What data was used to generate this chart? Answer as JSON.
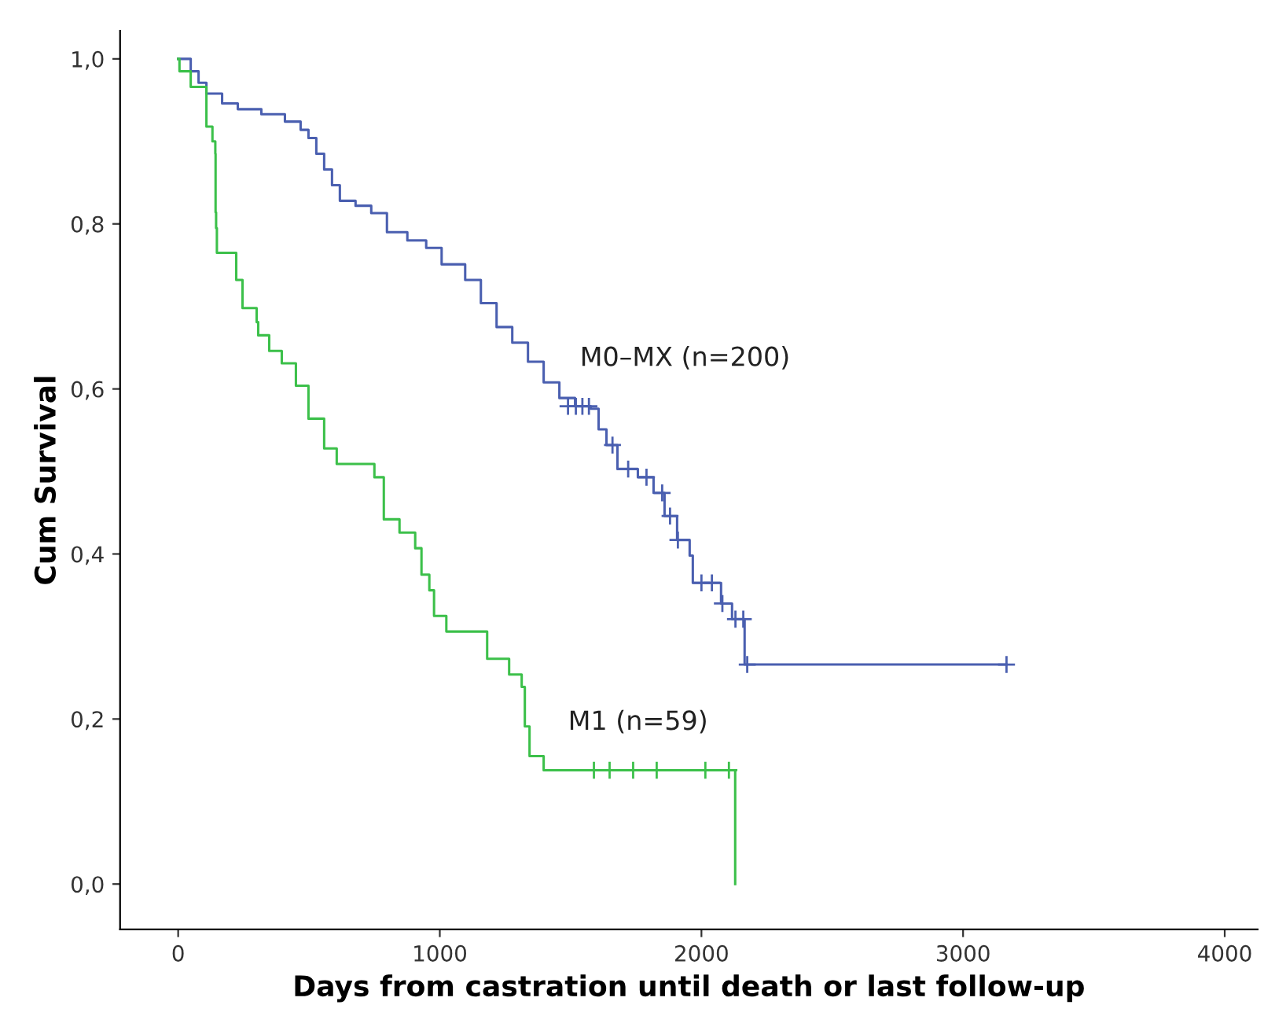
{
  "chart_data": {
    "type": "step",
    "xlabel": "Days from castration until death or last follow-up",
    "ylabel": "Cum Survival",
    "xlim": [
      -222,
      4126
    ],
    "ylim": [
      -0.055,
      1.034
    ],
    "xticks": [
      0,
      1000,
      2000,
      3000,
      4000
    ],
    "yticks": [
      {
        "value": 0.0,
        "label": "0,0"
      },
      {
        "value": 0.2,
        "label": "0,2"
      },
      {
        "value": 0.4,
        "label": "0,4"
      },
      {
        "value": 0.6,
        "label": "0,6"
      },
      {
        "value": 0.8,
        "label": "0,8"
      },
      {
        "value": 1.0,
        "label": "1,0"
      }
    ],
    "grid": false,
    "legend": false,
    "marker": "none",
    "line_style": "solid",
    "series": [
      {
        "name": "M0–MX (n=200)",
        "color": "#4a5fb0",
        "x": [
          0,
          48,
          78,
          108,
          168,
          228,
          318,
          408,
          468,
          498,
          528,
          558,
          588,
          618,
          678,
          738,
          798,
          876,
          948,
          1007,
          1097,
          1157,
          1217,
          1277,
          1337,
          1397,
          1457,
          1517,
          1577,
          1607,
          1637,
          1679,
          1757,
          1817,
          1859,
          1907,
          1955,
          1967,
          2075,
          2117,
          2165,
          3166
        ],
        "values": [
          1.0,
          0.985,
          0.971,
          0.958,
          0.946,
          0.939,
          0.933,
          0.924,
          0.914,
          0.904,
          0.885,
          0.866,
          0.847,
          0.828,
          0.822,
          0.813,
          0.79,
          0.78,
          0.771,
          0.751,
          0.732,
          0.704,
          0.675,
          0.656,
          0.633,
          0.608,
          0.589,
          0.579,
          0.576,
          0.551,
          0.532,
          0.503,
          0.493,
          0.474,
          0.446,
          0.417,
          0.398,
          0.365,
          0.34,
          0.321,
          0.266,
          0.266
        ]
      },
      {
        "name": "M1 (n=59)",
        "color": "#3cc04a",
        "x": [
          0,
          5,
          48,
          108,
          131,
          142,
          143,
          145,
          148,
          222,
          246,
          300,
          306,
          348,
          396,
          450,
          498,
          558,
          606,
          750,
          786,
          846,
          906,
          930,
          960,
          978,
          1025,
          1181,
          1265,
          1313,
          1325,
          1343,
          1397,
          2129,
          2129
        ],
        "values": [
          1.0,
          0.985,
          0.966,
          0.918,
          0.9,
          0.885,
          0.814,
          0.795,
          0.765,
          0.732,
          0.698,
          0.681,
          0.665,
          0.646,
          0.631,
          0.604,
          0.564,
          0.528,
          0.509,
          0.493,
          0.442,
          0.426,
          0.407,
          0.375,
          0.356,
          0.325,
          0.306,
          0.273,
          0.254,
          0.239,
          0.191,
          0.155,
          0.138,
          0.138,
          0.0
        ]
      },
      {
        "type": "scatter",
        "marker": "cross",
        "color": "#4a5fb0",
        "x": [
          1490,
          1520,
          1545,
          1570,
          1660,
          1720,
          1790,
          1850,
          1880,
          1910,
          2000,
          2040,
          2080,
          2130,
          2160,
          2175,
          3166
        ],
        "values": [
          0.579,
          0.579,
          0.579,
          0.579,
          0.532,
          0.503,
          0.493,
          0.474,
          0.446,
          0.417,
          0.365,
          0.365,
          0.34,
          0.321,
          0.321,
          0.266,
          0.266
        ]
      },
      {
        "type": "scatter",
        "marker": "cross",
        "color": "#3cc04a",
        "x": [
          1589,
          1649,
          1739,
          1829,
          2015,
          2105
        ],
        "values": [
          0.138,
          0.138,
          0.138,
          0.138,
          0.138,
          0.138
        ]
      }
    ]
  }
}
